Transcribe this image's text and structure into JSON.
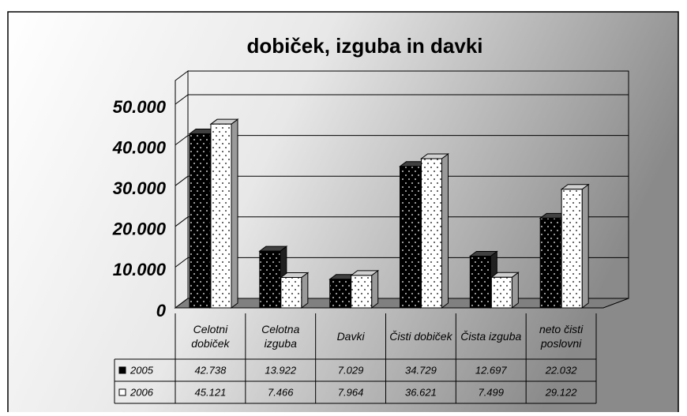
{
  "chart_data": {
    "type": "bar3d",
    "title": "dobiček, izguba in davki",
    "categories": [
      "Celotni dobiček",
      "Celotna izguba",
      "Davki",
      "Čisti dobiček",
      "Čista izguba",
      "neto čisti poslovni"
    ],
    "series": [
      {
        "name": "2005",
        "color": "#000000",
        "values": [
          42738,
          13922,
          7029,
          34729,
          12697,
          22032
        ],
        "value_labels": [
          "42.738",
          "13.922",
          "7.029",
          "34.729",
          "12.697",
          "22.032"
        ]
      },
      {
        "name": "2006",
        "color": "#ffffff",
        "values": [
          45121,
          7466,
          7964,
          36621,
          7499,
          29122
        ],
        "value_labels": [
          "45.121",
          "7.466",
          "7.964",
          "36.621",
          "7.499",
          "29.122"
        ]
      }
    ],
    "ylim": [
      0,
      50000
    ],
    "yticks": [
      0,
      {
        "value": 10000,
        "label": "10.000"
      },
      {
        "value": 20000,
        "label": "20.000"
      },
      {
        "value": 30000,
        "label": "30.000"
      },
      {
        "value": 40000,
        "label": "40.000"
      },
      {
        "value": 50000,
        "label": "50.000"
      }
    ],
    "grid": true
  }
}
